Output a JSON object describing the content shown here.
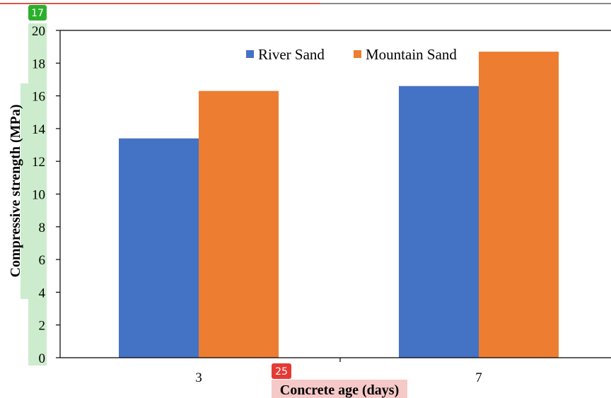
{
  "chart_data": {
    "type": "bar",
    "categories": [
      "3",
      "7"
    ],
    "series": [
      {
        "name": "River Sand",
        "values": [
          13.4,
          16.6
        ],
        "color": "#4472c4"
      },
      {
        "name": "Mountain Sand",
        "values": [
          16.3,
          18.7
        ],
        "color": "#ed7d31"
      }
    ],
    "xlabel": "Concrete age (days)",
    "ylabel": "Compressive strength (MPa)",
    "ylim": [
      0,
      20
    ],
    "yticks": [
      0,
      2,
      4,
      6,
      8,
      10,
      12,
      14,
      16,
      18,
      20
    ],
    "grid": false,
    "legend_position": "top"
  },
  "annotations": {
    "y_axis_badge": "17",
    "x_axis_badge": "25",
    "y_badge_color": "#2bb02b",
    "x_badge_color": "#e53935"
  }
}
